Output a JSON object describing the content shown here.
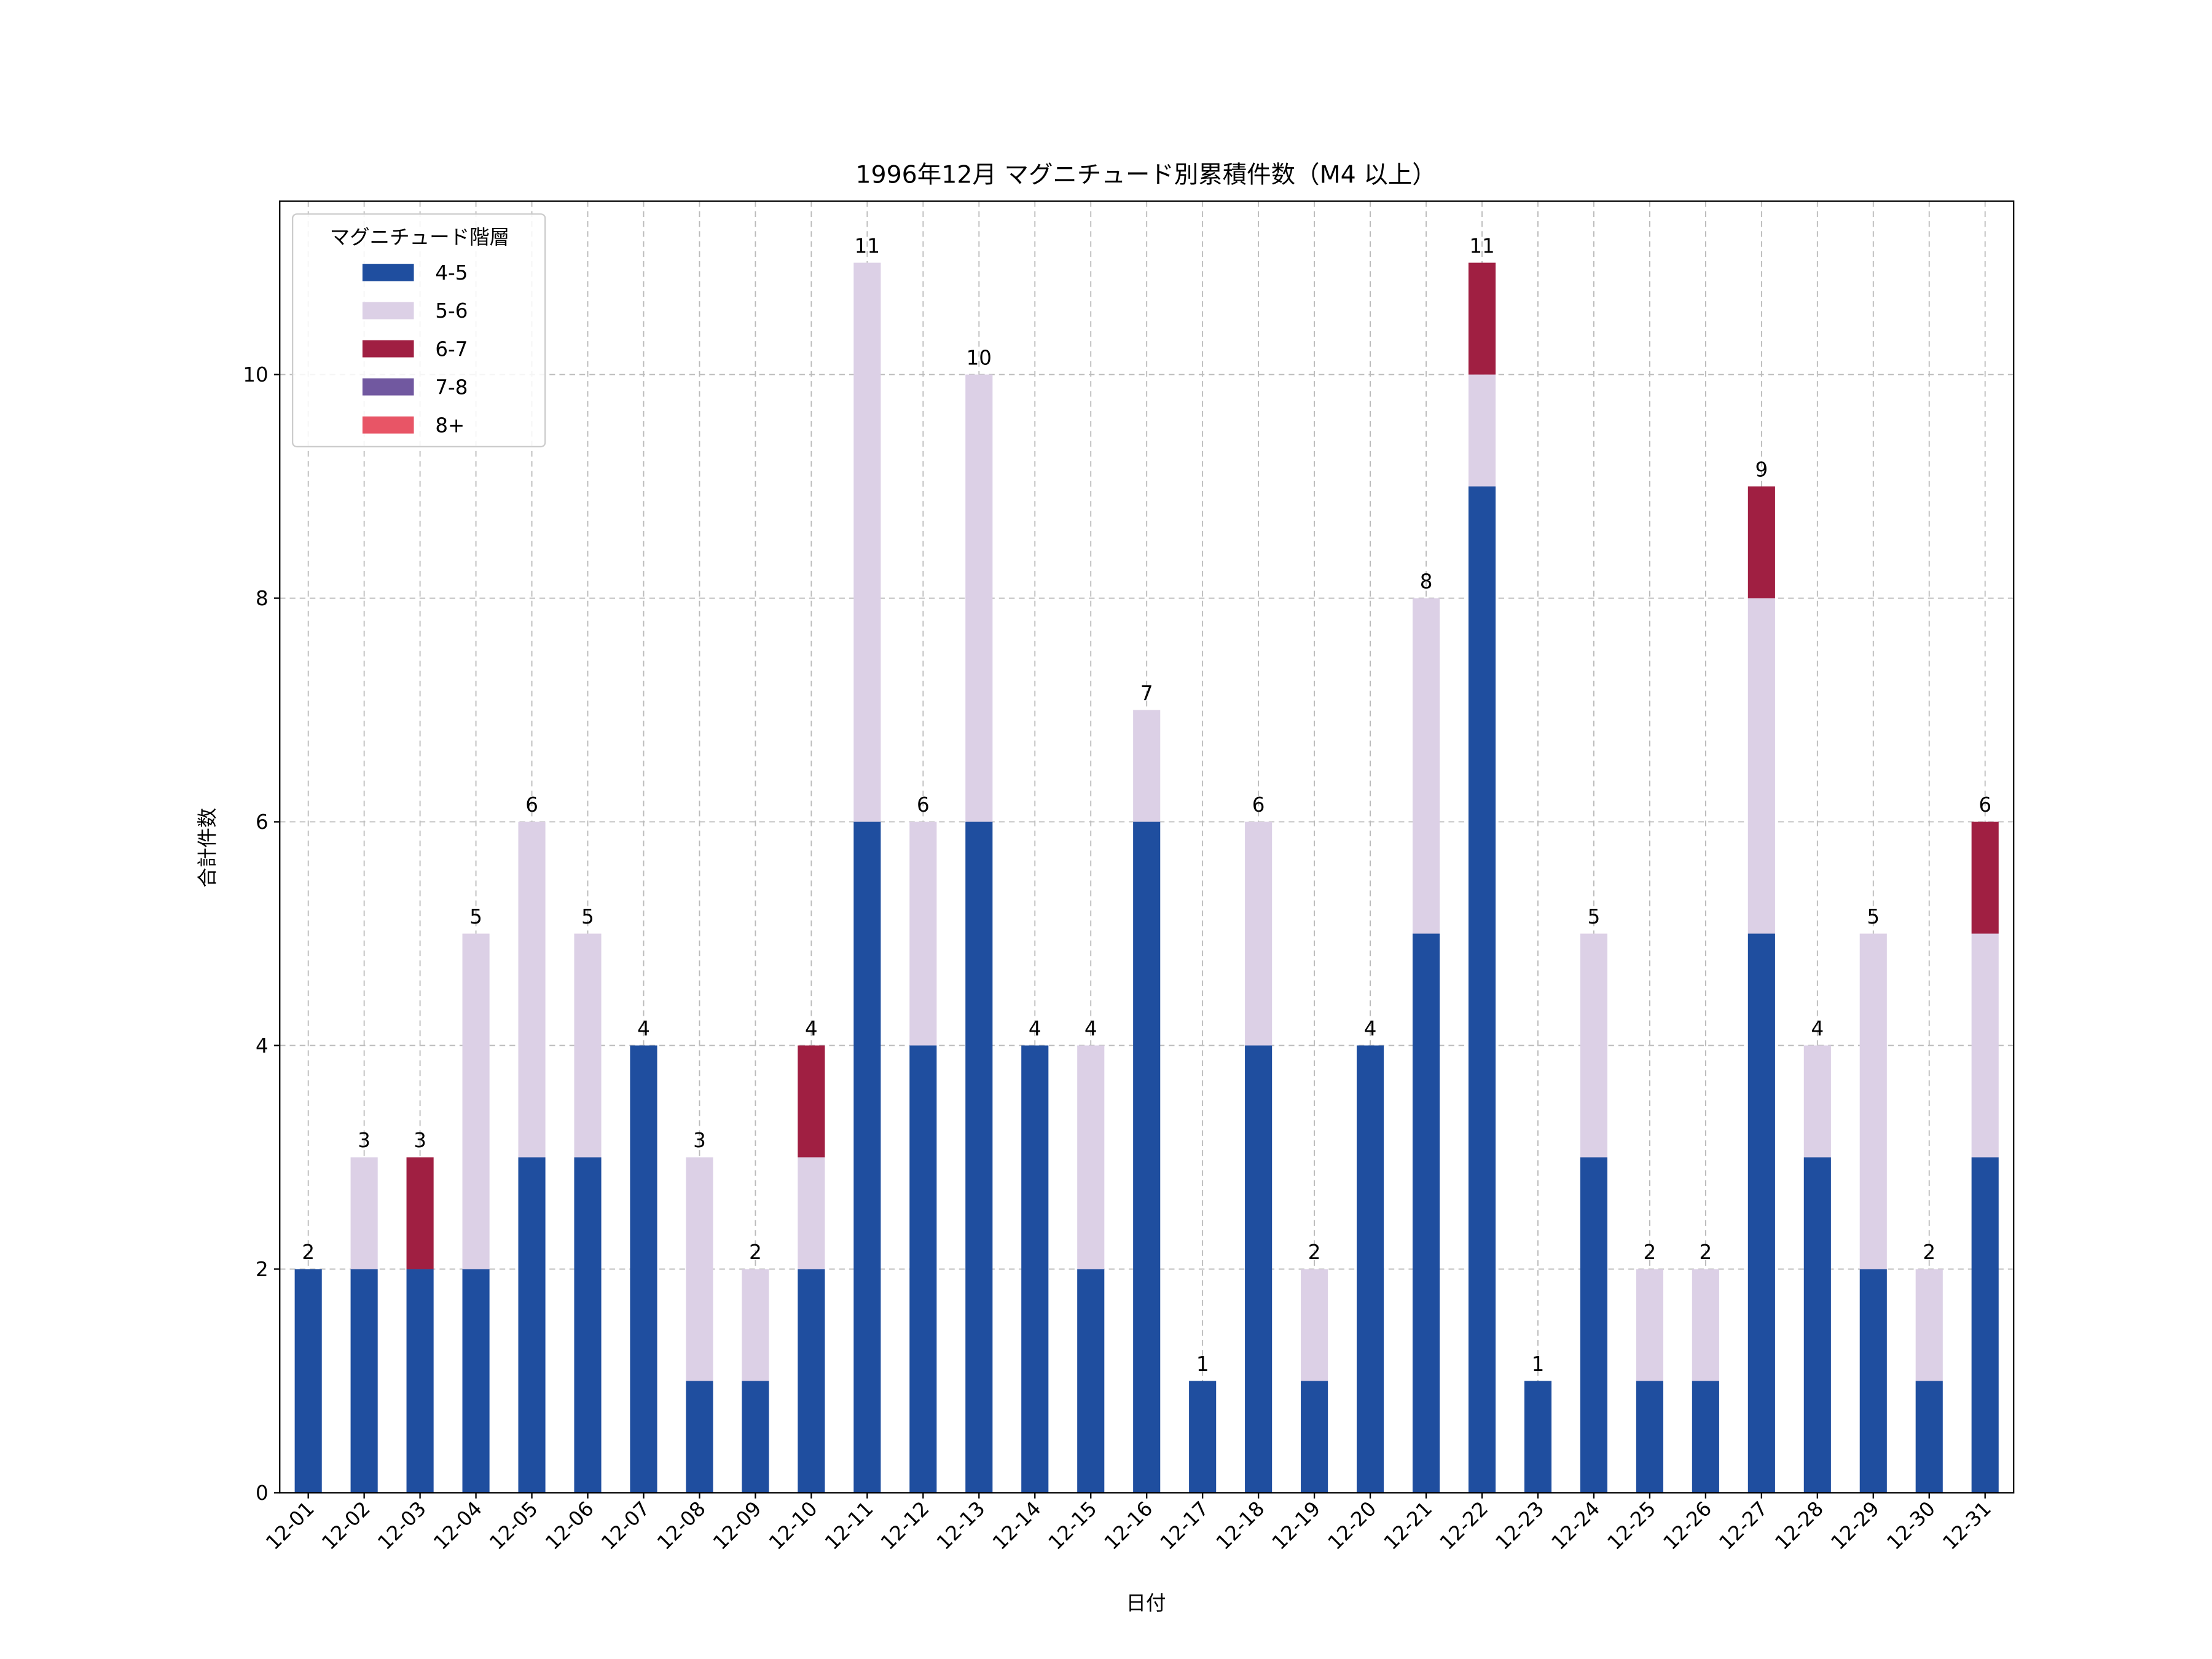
{
  "chart_data": {
    "type": "bar",
    "stacked": true,
    "title": "1996年12月 マグニチュード別累積件数（M4 以上）",
    "xlabel": "日付",
    "ylabel": "合計件数",
    "ylim": [
      0,
      11.55
    ],
    "yticks": [
      0,
      2,
      4,
      6,
      8,
      10
    ],
    "grid": true,
    "legend": {
      "title": "マグニチュード階層",
      "placement": "top-left"
    },
    "categories": [
      "12-01",
      "12-02",
      "12-03",
      "12-04",
      "12-05",
      "12-06",
      "12-07",
      "12-08",
      "12-09",
      "12-10",
      "12-11",
      "12-12",
      "12-13",
      "12-14",
      "12-15",
      "12-16",
      "12-17",
      "12-18",
      "12-19",
      "12-20",
      "12-21",
      "12-22",
      "12-23",
      "12-24",
      "12-25",
      "12-26",
      "12-27",
      "12-28",
      "12-29",
      "12-30",
      "12-31"
    ],
    "series": [
      {
        "name": "4-5",
        "color": "#1f4e9f",
        "values": [
          2,
          2,
          2,
          2,
          3,
          3,
          4,
          1,
          1,
          2,
          6,
          4,
          6,
          4,
          2,
          6,
          1,
          4,
          1,
          4,
          5,
          9,
          1,
          3,
          1,
          1,
          5,
          3,
          2,
          1,
          3
        ]
      },
      {
        "name": "5-6",
        "color": "#dcd0e6",
        "values": [
          0,
          1,
          0,
          3,
          3,
          2,
          0,
          2,
          1,
          1,
          5,
          2,
          4,
          0,
          2,
          1,
          0,
          2,
          1,
          0,
          3,
          1,
          0,
          2,
          1,
          1,
          3,
          1,
          3,
          1,
          2
        ]
      },
      {
        "name": "6-7",
        "color": "#a01f42",
        "values": [
          0,
          0,
          1,
          0,
          0,
          0,
          0,
          0,
          0,
          1,
          0,
          0,
          0,
          0,
          0,
          0,
          0,
          0,
          0,
          0,
          0,
          1,
          0,
          0,
          0,
          0,
          1,
          0,
          0,
          0,
          1
        ]
      },
      {
        "name": "7-8",
        "color": "#7158a0",
        "values": [
          0,
          0,
          0,
          0,
          0,
          0,
          0,
          0,
          0,
          0,
          0,
          0,
          0,
          0,
          0,
          0,
          0,
          0,
          0,
          0,
          0,
          0,
          0,
          0,
          0,
          0,
          0,
          0,
          0,
          0,
          0
        ]
      },
      {
        "name": "8+",
        "color": "#e85566",
        "values": [
          0,
          0,
          0,
          0,
          0,
          0,
          0,
          0,
          0,
          0,
          0,
          0,
          0,
          0,
          0,
          0,
          0,
          0,
          0,
          0,
          0,
          0,
          0,
          0,
          0,
          0,
          0,
          0,
          0,
          0,
          0
        ]
      }
    ],
    "totals": [
      2,
      3,
      3,
      5,
      6,
      5,
      4,
      3,
      2,
      4,
      11,
      6,
      10,
      4,
      4,
      7,
      1,
      6,
      2,
      4,
      8,
      11,
      1,
      5,
      2,
      2,
      9,
      4,
      5,
      2,
      6
    ]
  }
}
